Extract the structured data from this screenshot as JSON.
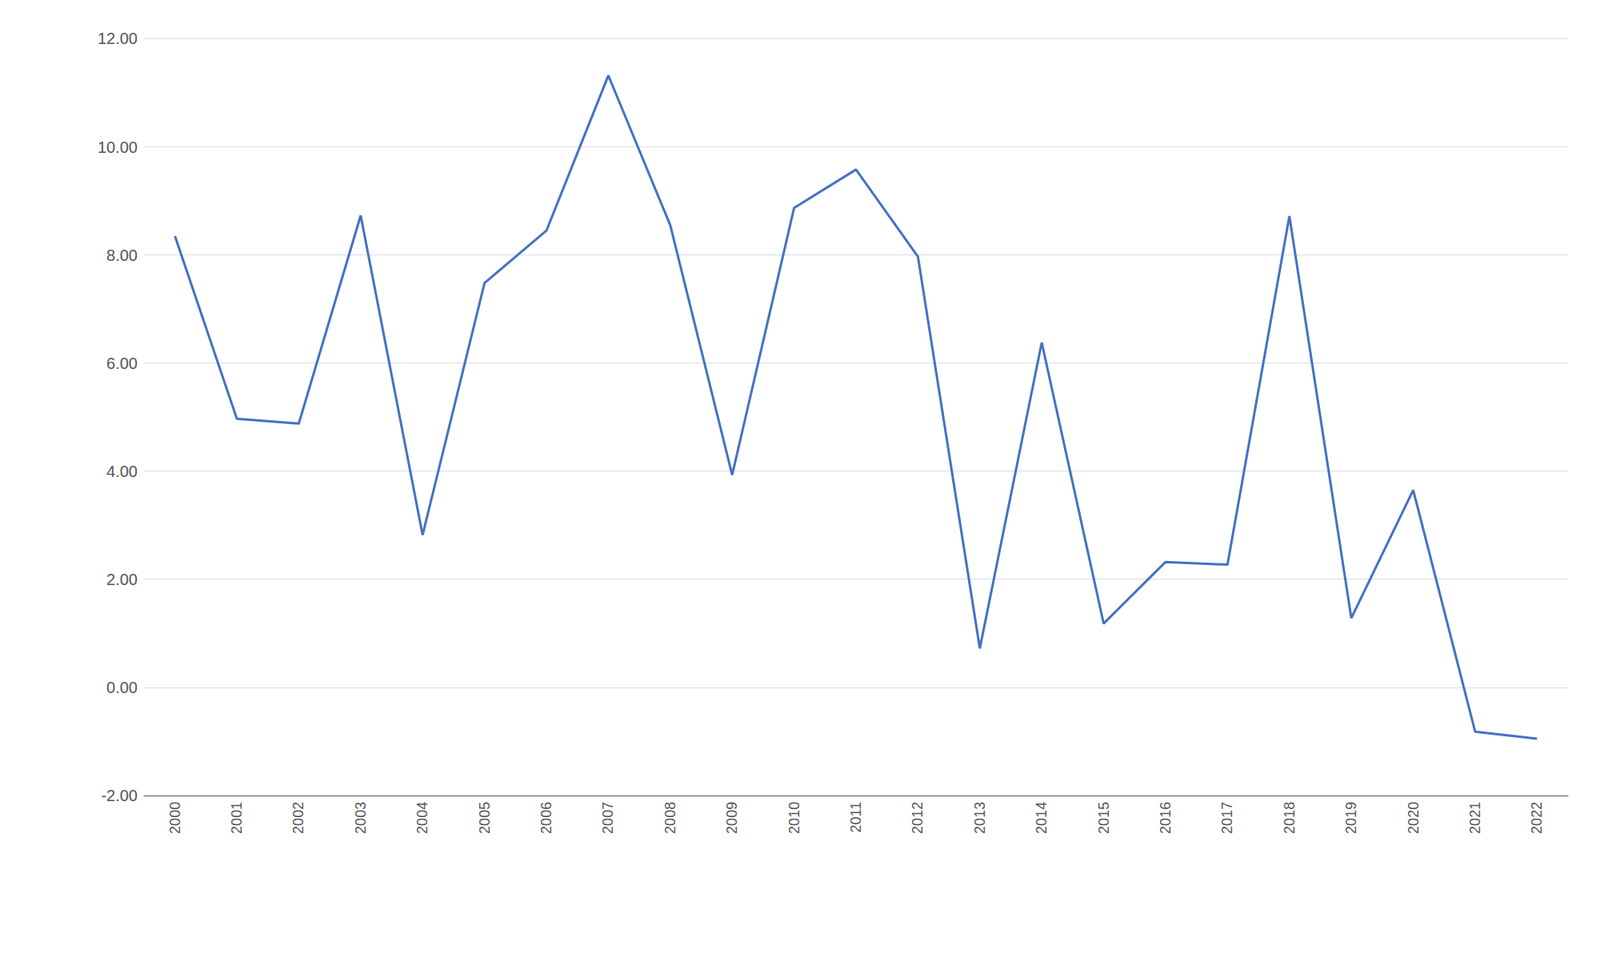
{
  "chart_data": {
    "type": "line",
    "x": [
      2000,
      2001,
      2002,
      2003,
      2004,
      2005,
      2006,
      2007,
      2008,
      2009,
      2010,
      2011,
      2012,
      2013,
      2014,
      2015,
      2016,
      2017,
      2018,
      2019,
      2020,
      2021,
      2022
    ],
    "values": [
      8.35,
      4.97,
      4.88,
      8.73,
      2.82,
      7.48,
      8.45,
      11.32,
      8.55,
      3.93,
      8.87,
      9.58,
      7.97,
      0.72,
      6.38,
      1.18,
      2.32,
      2.27,
      8.72,
      1.28,
      3.65,
      -0.82,
      -0.95
    ],
    "color": "#4472c4",
    "xlim": [
      1999.5,
      2022.5
    ],
    "xticks": [
      2000,
      2001,
      2002,
      2003,
      2004,
      2005,
      2006,
      2007,
      2008,
      2009,
      2010,
      2011,
      2012,
      2013,
      2014,
      2015,
      2016,
      2017,
      2018,
      2019,
      2020,
      2021,
      2022
    ],
    "ylim": [
      -2.0,
      12.0
    ],
    "yticks": [
      {
        "value": -2.0,
        "label": "-2.00"
      },
      {
        "value": 0.0,
        "label": "0.00"
      },
      {
        "value": 2.0,
        "label": "2.00"
      },
      {
        "value": 4.0,
        "label": "4.00"
      },
      {
        "value": 6.0,
        "label": "6.00"
      },
      {
        "value": 8.0,
        "label": "8.00"
      },
      {
        "value": 10.0,
        "label": "10.00"
      },
      {
        "value": 12.0,
        "label": "12.00"
      }
    ],
    "grid": true
  }
}
